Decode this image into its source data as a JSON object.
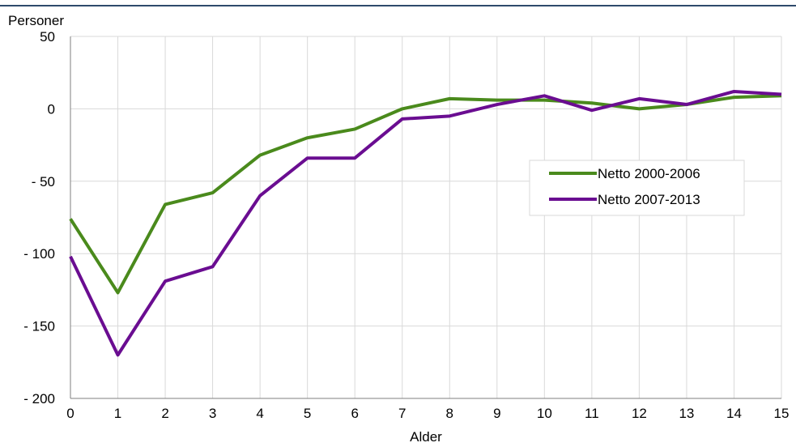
{
  "chart_data": {
    "type": "line",
    "ylabel": "Personer",
    "xlabel": "Alder",
    "x": [
      0,
      1,
      2,
      3,
      4,
      5,
      6,
      7,
      8,
      9,
      10,
      11,
      12,
      13,
      14,
      15
    ],
    "xlim": [
      0,
      15
    ],
    "ylim": [
      -200,
      50
    ],
    "y_ticks": [
      50,
      0,
      -50,
      -100,
      -150,
      -200
    ],
    "y_tick_labels": [
      "50",
      "0",
      "- 50",
      "- 100",
      "- 150",
      "- 200"
    ],
    "x_tick_labels": [
      "0",
      "1",
      "2",
      "3",
      "4",
      "5",
      "6",
      "7",
      "8",
      "9",
      "10",
      "11",
      "12",
      "13",
      "14",
      "15"
    ],
    "grid": true,
    "legend_position": "center-right",
    "series": [
      {
        "name": "Netto 2000-2006",
        "color": "#4a8a1c",
        "values": [
          -76,
          -127,
          -66,
          -58,
          -32,
          -20,
          -14,
          0,
          7,
          6,
          6,
          4,
          0,
          3,
          8,
          9
        ]
      },
      {
        "name": "Netto 2007-2013",
        "color": "#6a0d91",
        "values": [
          -102,
          -170,
          -119,
          -109,
          -60,
          -34,
          -34,
          -7,
          -5,
          3,
          9,
          -1,
          7,
          3,
          12,
          10
        ]
      }
    ]
  },
  "colors": {
    "top_rule": "#2e4a6b",
    "grid": "#d9d9d9",
    "axis": "#7f7f7f"
  }
}
